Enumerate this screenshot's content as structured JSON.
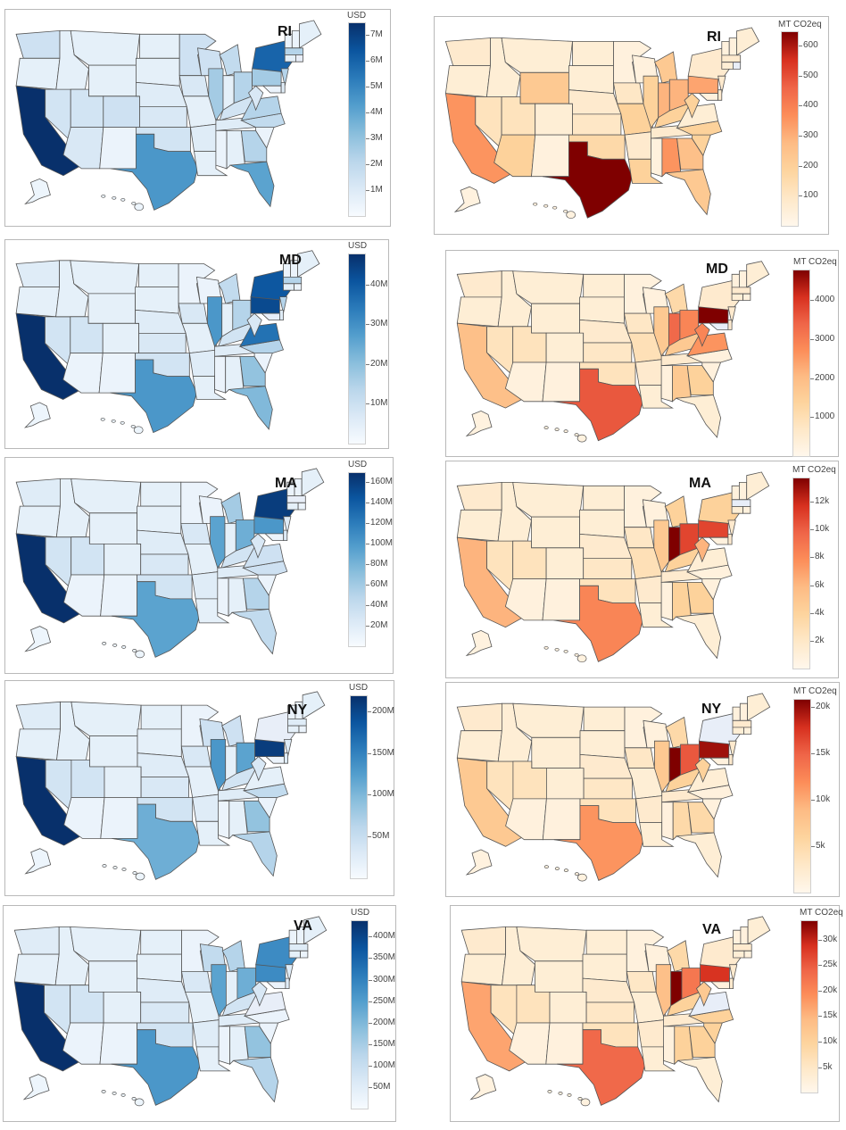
{
  "chart_data": [
    {
      "type": "choropleth",
      "metric": "cost",
      "label": "RI",
      "colorbar_title": "USD",
      "scale": "Blues",
      "ticks": [
        "1M",
        "2M",
        "3M",
        "4M",
        "5M",
        "6M",
        "7M"
      ],
      "tick_values": [
        1,
        2,
        3,
        4,
        5,
        6,
        7
      ],
      "range": [
        0,
        7.5
      ],
      "highlight": [
        "CA",
        "NY",
        "TX",
        "FL",
        "PA",
        "IL"
      ]
    },
    {
      "type": "choropleth",
      "metric": "emissions",
      "label": "RI",
      "colorbar_title": "MT CO2eq",
      "scale": "OrRd",
      "ticks": [
        "100",
        "200",
        "300",
        "400",
        "500",
        "600"
      ],
      "tick_values": [
        100,
        200,
        300,
        400,
        500,
        600
      ],
      "range": [
        0,
        650
      ],
      "highlight": [
        "TX",
        "CA",
        "AL",
        "PA",
        "IN",
        "OH"
      ]
    },
    {
      "type": "choropleth",
      "metric": "cost",
      "label": "MD",
      "colorbar_title": "USD",
      "scale": "Blues",
      "ticks": [
        "10M",
        "20M",
        "30M",
        "40M"
      ],
      "tick_values": [
        10,
        20,
        30,
        40
      ],
      "range": [
        0,
        48
      ],
      "highlight": [
        "CA",
        "PA",
        "NY",
        "VA",
        "TX",
        "IL"
      ]
    },
    {
      "type": "choropleth",
      "metric": "emissions",
      "label": "MD",
      "colorbar_title": "MT CO2eq",
      "scale": "OrRd",
      "ticks": [
        "1000",
        "2000",
        "3000",
        "4000"
      ],
      "tick_values": [
        1000,
        2000,
        3000,
        4000
      ],
      "range": [
        0,
        4800
      ],
      "highlight": [
        "PA",
        "TX",
        "IN",
        "OH",
        "WV",
        "VA"
      ]
    },
    {
      "type": "choropleth",
      "metric": "cost",
      "label": "MA",
      "colorbar_title": "USD",
      "scale": "Blues",
      "ticks": [
        "20M",
        "40M",
        "60M",
        "80M",
        "100M",
        "120M",
        "140M",
        "160M"
      ],
      "tick_values": [
        20,
        40,
        60,
        80,
        100,
        120,
        140,
        160
      ],
      "range": [
        0,
        170
      ],
      "highlight": [
        "CA",
        "NY",
        "PA",
        "TX",
        "IL",
        "OH"
      ]
    },
    {
      "type": "choropleth",
      "metric": "emissions",
      "label": "MA",
      "colorbar_title": "MT CO2eq",
      "scale": "OrRd",
      "ticks": [
        "2k",
        "4k",
        "6k",
        "8k",
        "10k",
        "12k"
      ],
      "tick_values": [
        2,
        4,
        6,
        8,
        10,
        12
      ],
      "range": [
        0,
        13.8
      ],
      "highlight": [
        "IN",
        "PA",
        "OH",
        "TX",
        "CA",
        "IL"
      ]
    },
    {
      "type": "choropleth",
      "metric": "cost",
      "label": "NY",
      "colorbar_title": "USD",
      "scale": "Blues",
      "ticks": [
        "50M",
        "100M",
        "150M",
        "200M"
      ],
      "tick_values": [
        50,
        100,
        150,
        200
      ],
      "range": [
        0,
        220
      ],
      "highlight": [
        "CA",
        "PA",
        "OH",
        "IL",
        "TX",
        "GA"
      ]
    },
    {
      "type": "choropleth",
      "metric": "emissions",
      "label": "NY",
      "colorbar_title": "MT CO2eq",
      "scale": "OrRd",
      "ticks": [
        "5k",
        "10k",
        "15k",
        "20k"
      ],
      "tick_values": [
        5,
        10,
        15,
        20
      ],
      "range": [
        0,
        21
      ],
      "highlight": [
        "IN",
        "PA",
        "OH",
        "TX",
        "CA",
        "IL"
      ]
    },
    {
      "type": "choropleth",
      "metric": "cost",
      "label": "VA",
      "colorbar_title": "USD",
      "scale": "Blues",
      "ticks": [
        "50M",
        "100M",
        "150M",
        "200M",
        "250M",
        "300M",
        "350M",
        "400M"
      ],
      "tick_values": [
        50,
        100,
        150,
        200,
        250,
        300,
        350,
        400
      ],
      "range": [
        0,
        440
      ],
      "highlight": [
        "CA",
        "NY",
        "PA",
        "TX",
        "IL",
        "OH"
      ]
    },
    {
      "type": "choropleth",
      "metric": "emissions",
      "label": "VA",
      "colorbar_title": "MT CO2eq",
      "scale": "OrRd",
      "ticks": [
        "5k",
        "10k",
        "15k",
        "20k",
        "25k",
        "30k"
      ],
      "tick_values": [
        5,
        10,
        15,
        20,
        25,
        30
      ],
      "range": [
        0,
        34
      ],
      "highlight": [
        "IN",
        "PA",
        "OH",
        "TX",
        "CA",
        "IL"
      ]
    }
  ],
  "colors": {
    "blues": [
      "#f7fbff",
      "#dbe9f6",
      "#bad6eb",
      "#89bedc",
      "#539ecd",
      "#2b7bba",
      "#0b559f",
      "#08306b"
    ],
    "orrd": [
      "#fff7ec",
      "#fee8c8",
      "#fdd49e",
      "#fdbb84",
      "#fc8d59",
      "#ef6548",
      "#d7301f",
      "#7f0000"
    ],
    "state_border": "#555555"
  }
}
